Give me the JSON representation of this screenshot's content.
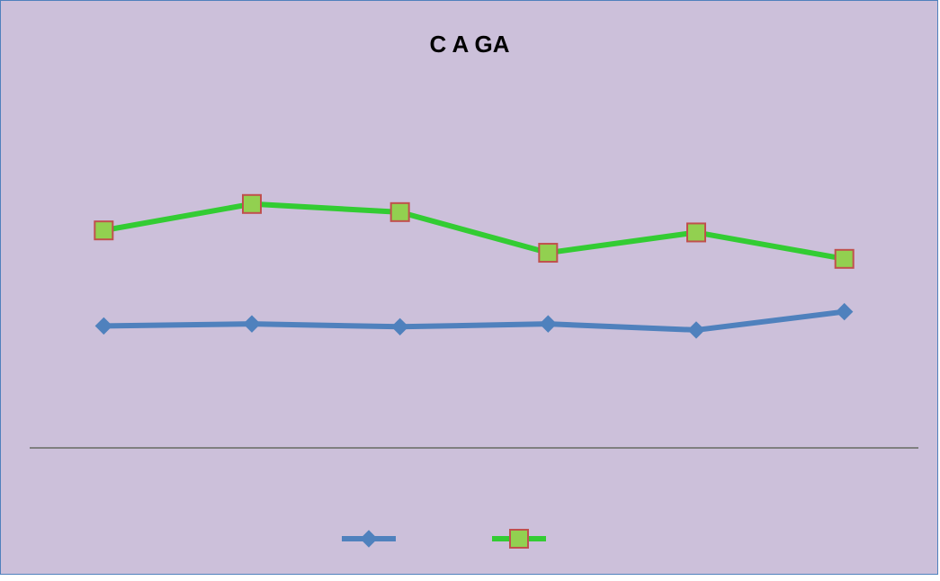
{
  "chart_data": {
    "type": "line",
    "title": "C A GA",
    "xlabel": "",
    "ylabel": "",
    "categories": [
      "",
      "",
      "",
      "",
      "",
      ""
    ],
    "ylim": [
      0,
      100
    ],
    "grid": false,
    "legend_position": "bottom",
    "series": [
      {
        "color": "#4f81bd",
        "marker": "diamond",
        "values": [
          30,
          30.5,
          29.8,
          30.5,
          29,
          33.5
        ]
      },
      {
        "color": "#33cc33",
        "marker": "square",
        "marker_fill": "#92d050",
        "marker_stroke": "#c0504d",
        "values": [
          53.5,
          60,
          58,
          48,
          53,
          46.5
        ]
      }
    ]
  }
}
